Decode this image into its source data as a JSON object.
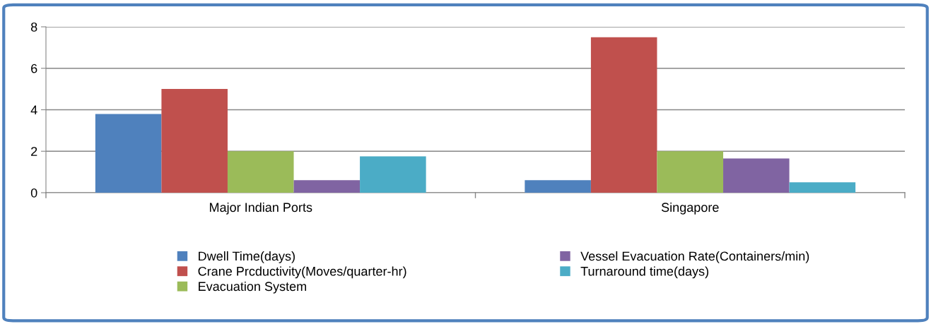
{
  "chart_data": {
    "type": "bar",
    "categories": [
      "Major Indian Ports",
      "Singapore"
    ],
    "series": [
      {
        "name": "Dwell Time(days)",
        "color": "#4f81bd",
        "values": [
          3.8,
          0.6
        ]
      },
      {
        "name": "Crane Prcductivity(Moves/quarter-hr)",
        "color": "#c0504d",
        "values": [
          5.0,
          7.5
        ]
      },
      {
        "name": "Evacuation System",
        "color": "#9bbb59",
        "values": [
          2.0,
          2.0
        ]
      },
      {
        "name": "Vessel Evacuation Rate(Containers/min)",
        "color": "#8064a2",
        "values": [
          0.6,
          1.65
        ]
      },
      {
        "name": "Turnaround time(days)",
        "color": "#4bacc6",
        "values": [
          1.75,
          0.5
        ]
      }
    ],
    "ylim": [
      0,
      8
    ],
    "yticks": [
      0,
      2,
      4,
      6,
      8
    ],
    "grid": "y",
    "legend": "bottom"
  }
}
